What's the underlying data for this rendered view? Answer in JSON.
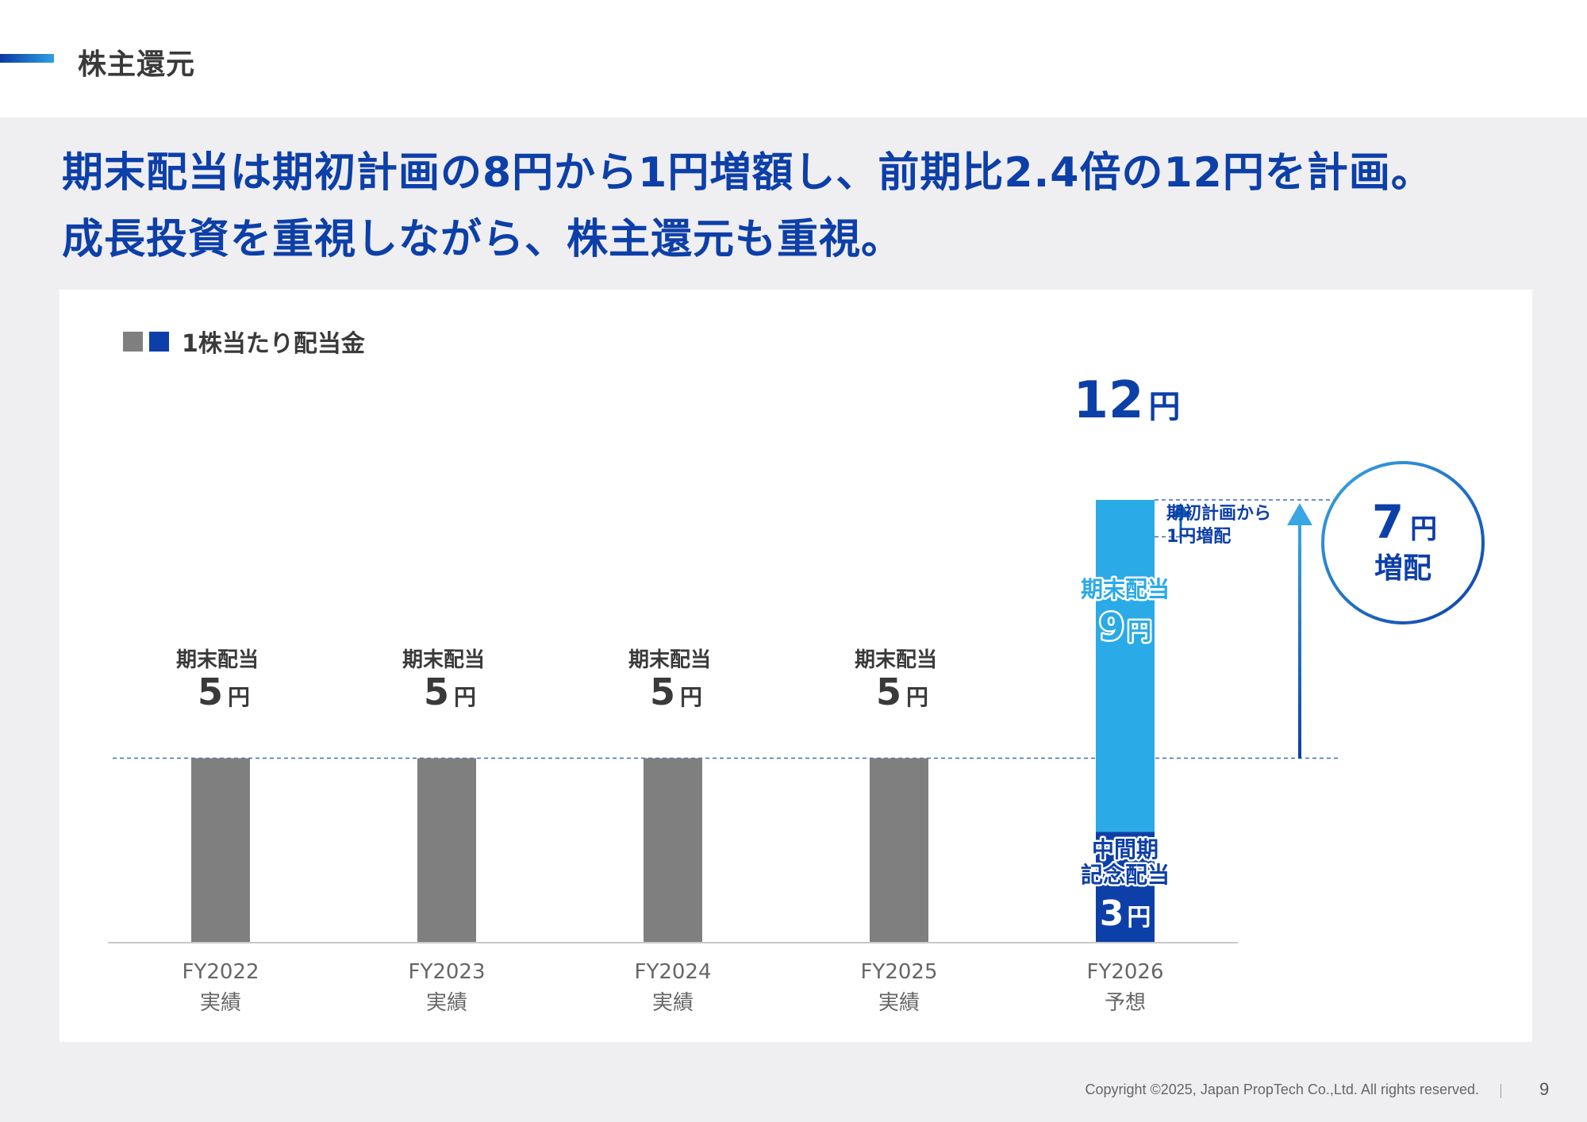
{
  "header": {
    "title": "株主還元"
  },
  "headline": {
    "line1": "期末配当は期初計画の8円から1円増額し、前期比2.4倍の12円を計画。",
    "line2": "成長投資を重視しながら、株主還元も重視。"
  },
  "legend": {
    "label": "1株当たり配当金"
  },
  "colors": {
    "gray_bar": "#7f7f7f",
    "light_blue": "#2aaae6",
    "dark_blue": "#0d3fa8",
    "headline_blue": "#0d3fa8"
  },
  "chart_data": {
    "type": "bar",
    "title": "1株当たり配当金",
    "unit": "円",
    "categories": [
      "FY2022",
      "FY2023",
      "FY2024",
      "FY2025",
      "FY2026"
    ],
    "category_sublabels": [
      "実績",
      "実績",
      "実績",
      "実績",
      "予想"
    ],
    "series": [
      {
        "name": "期末配当",
        "values": [
          5,
          5,
          5,
          5,
          9
        ],
        "colors": [
          "#7f7f7f",
          "#7f7f7f",
          "#7f7f7f",
          "#7f7f7f",
          "#2aaae6"
        ]
      },
      {
        "name": "中間期記念配当",
        "values": [
          0,
          0,
          0,
          0,
          3
        ],
        "colors": [
          "",
          "",
          "",
          "",
          "#0d3fa8"
        ]
      }
    ],
    "data_labels": [
      {
        "name": "期末配当",
        "value": "5",
        "unit": "円"
      },
      {
        "name": "期末配当",
        "value": "5",
        "unit": "円"
      },
      {
        "name": "期末配当",
        "value": "5",
        "unit": "円"
      },
      {
        "name": "期末配当",
        "value": "5",
        "unit": "円"
      }
    ],
    "fy2026": {
      "total_value": "12",
      "total_unit": "円",
      "upper_label": "期末配当",
      "upper_value": "9",
      "lower_label_line1": "中間期",
      "lower_label_line2": "記念配当",
      "lower_value": "3",
      "unit": "円"
    },
    "annotations": {
      "increase_note_line1": "期初計画から",
      "increase_note_line2": "1円増配",
      "increase_note_delta": 1,
      "circle_value": "7",
      "circle_unit": "円",
      "circle_label": "増配",
      "circle_delta": 7
    },
    "ylim": [
      0,
      12.5
    ],
    "grid": false
  },
  "footer": {
    "copyright": "Copyright ©2025, Japan PropTech Co.,Ltd. All rights reserved.",
    "page": "9"
  }
}
